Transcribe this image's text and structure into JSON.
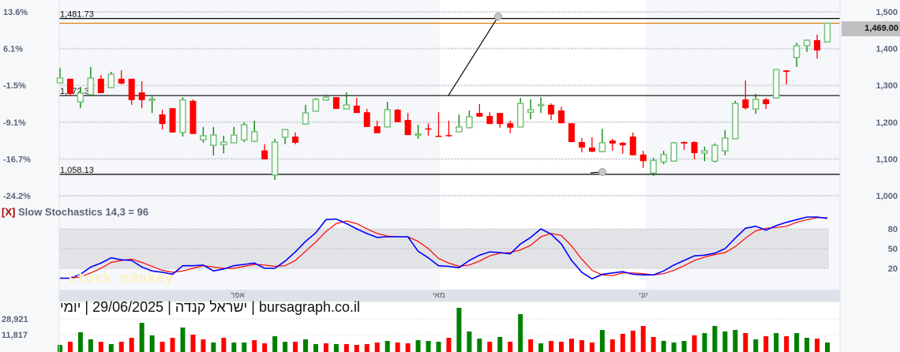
{
  "price_axis": {
    "labels": [
      "1,500",
      "1,400",
      "1,300",
      "1,200",
      "1,100",
      "1,000"
    ],
    "values": [
      1500,
      1400,
      1300,
      1200,
      1100,
      1000
    ]
  },
  "pct_axis": {
    "labels": [
      "13.6%",
      "6.1%",
      "-1.5%",
      "-9.1%",
      "-16.7%",
      "-24.2%"
    ]
  },
  "levels": [
    {
      "value": 1481.73,
      "label": "1,481.73"
    },
    {
      "value": 1272.38,
      "label": "1,272.38"
    },
    {
      "value": 1058.13,
      "label": "1,058.13"
    }
  ],
  "last_price": {
    "value": 1469,
    "label": "1,469.00"
  },
  "colors": {
    "up_body": "#7cc47f",
    "up_wick": "#008000",
    "down": "#ff0000",
    "last_line": "#e07b00",
    "stoch_k": "#0000ff",
    "stoch_d": "#ff0000",
    "vol_up": "#008000",
    "vol_down": "#ff0000"
  },
  "candles": [
    [
      1307,
      1348,
      1305,
      1320
    ],
    [
      1318,
      1318,
      1272,
      1277
    ],
    [
      1255,
      1296,
      1238,
      1279
    ],
    [
      1275,
      1350,
      1273,
      1320
    ],
    [
      1318,
      1328,
      1279,
      1279
    ],
    [
      1294,
      1337,
      1294,
      1330
    ],
    [
      1318,
      1341,
      1303,
      1305
    ],
    [
      1318,
      1318,
      1247,
      1260
    ],
    [
      1281,
      1311,
      1238,
      1260
    ],
    [
      1261,
      1270,
      1225,
      1263
    ],
    [
      1221,
      1234,
      1180,
      1195
    ],
    [
      1238,
      1238,
      1172,
      1172
    ],
    [
      1172,
      1268,
      1161,
      1260
    ],
    [
      1258,
      1262,
      1168,
      1168
    ],
    [
      1152,
      1187,
      1144,
      1163
    ],
    [
      1137,
      1187,
      1110,
      1165
    ],
    [
      1139,
      1163,
      1115,
      1146
    ],
    [
      1144,
      1187,
      1144,
      1165
    ],
    [
      1152,
      1200,
      1146,
      1193
    ],
    [
      1148,
      1204,
      1146,
      1174
    ],
    [
      1123,
      1140,
      1099,
      1099
    ],
    [
      1056,
      1155,
      1043,
      1146
    ],
    [
      1159,
      1180,
      1140,
      1180
    ],
    [
      1161,
      1172,
      1140,
      1144
    ],
    [
      1195,
      1247,
      1193,
      1225
    ],
    [
      1230,
      1266,
      1230,
      1262
    ],
    [
      1260,
      1275,
      1260,
      1268
    ],
    [
      1268,
      1268,
      1236,
      1236
    ],
    [
      1236,
      1281,
      1236,
      1247
    ],
    [
      1245,
      1266,
      1225,
      1225
    ],
    [
      1227,
      1236,
      1187,
      1187
    ],
    [
      1189,
      1204,
      1170,
      1170
    ],
    [
      1187,
      1255,
      1187,
      1234
    ],
    [
      1234,
      1236,
      1200,
      1200
    ],
    [
      1206,
      1225,
      1165,
      1165
    ],
    [
      1166,
      1193,
      1155,
      1168
    ],
    [
      1183,
      1197,
      1163,
      1181
    ],
    [
      1163,
      1227,
      1160,
      1162
    ],
    [
      1165,
      1204,
      1160,
      1163
    ],
    [
      1174,
      1221,
      1174,
      1187
    ],
    [
      1185,
      1232,
      1183,
      1215
    ],
    [
      1225,
      1249,
      1215,
      1215
    ],
    [
      1217,
      1227,
      1195,
      1195
    ],
    [
      1225,
      1225,
      1185,
      1195
    ],
    [
      1197,
      1204,
      1170,
      1185
    ],
    [
      1187,
      1266,
      1187,
      1251
    ],
    [
      1227,
      1262,
      1208,
      1234
    ],
    [
      1246,
      1268,
      1225,
      1248
    ],
    [
      1247,
      1251,
      1206,
      1221
    ],
    [
      1232,
      1242,
      1197,
      1197
    ],
    [
      1197,
      1197,
      1146,
      1146
    ],
    [
      1146,
      1157,
      1118,
      1131
    ],
    [
      1131,
      1159,
      1118,
      1120
    ],
    [
      1120,
      1182,
      1120,
      1144
    ],
    [
      1150,
      1155,
      1122,
      1142
    ],
    [
      1144,
      1146,
      1114,
      1137
    ],
    [
      1161,
      1172,
      1110,
      1110
    ],
    [
      1112,
      1122,
      1075,
      1094
    ],
    [
      1062,
      1103,
      1054,
      1096
    ],
    [
      1092,
      1122,
      1086,
      1112
    ],
    [
      1094,
      1146,
      1094,
      1144
    ],
    [
      1146,
      1148,
      1125,
      1142
    ],
    [
      1146,
      1148,
      1099,
      1116
    ],
    [
      1116,
      1133,
      1094,
      1122
    ],
    [
      1094,
      1142,
      1090,
      1137
    ],
    [
      1122,
      1178,
      1110,
      1157
    ],
    [
      1155,
      1258,
      1155,
      1251
    ],
    [
      1262,
      1313,
      1234,
      1238
    ],
    [
      1236,
      1277,
      1223,
      1262
    ],
    [
      1262,
      1266,
      1236,
      1249
    ],
    [
      1266,
      1343,
      1266,
      1343
    ],
    [
      1341,
      1341,
      1303,
      1337
    ],
    [
      1376,
      1416,
      1350,
      1408
    ],
    [
      1408,
      1423,
      1391,
      1423
    ],
    [
      1423,
      1438,
      1373,
      1395
    ],
    [
      1418,
      1469,
      1418,
      1469
    ]
  ],
  "stochastics": {
    "title_prefix": "[X]",
    "title": "Slow Stochastics 14,3 = 96",
    "axis_labels": [
      "80",
      "50",
      "20"
    ],
    "k": [
      5,
      5,
      11,
      22,
      28,
      36,
      33,
      32,
      22,
      16,
      14,
      11,
      24,
      24,
      25,
      16,
      19,
      24,
      26,
      28,
      20,
      20,
      31,
      45,
      61,
      74,
      94,
      95,
      88,
      80,
      73,
      67,
      68,
      68,
      68,
      46,
      36,
      24,
      23,
      21,
      32,
      40,
      45,
      44,
      42,
      57,
      67,
      80,
      72,
      57,
      32,
      14,
      4,
      11,
      13,
      15,
      11,
      10,
      10,
      16,
      25,
      32,
      39,
      40,
      43,
      50,
      66,
      81,
      84,
      78,
      85,
      90,
      94,
      98,
      98,
      96
    ],
    "d": [
      5,
      5,
      7,
      13,
      20,
      29,
      32,
      34,
      29,
      23,
      17,
      14,
      16,
      20,
      24,
      22,
      20,
      20,
      23,
      26,
      25,
      23,
      24,
      32,
      46,
      60,
      76,
      88,
      92,
      88,
      80,
      73,
      69,
      68,
      68,
      61,
      50,
      35,
      28,
      23,
      25,
      31,
      39,
      43,
      44,
      48,
      55,
      68,
      73,
      70,
      54,
      34,
      17,
      10,
      9,
      13,
      13,
      12,
      10,
      12,
      17,
      24,
      32,
      37,
      41,
      44,
      53,
      66,
      77,
      81,
      82,
      84,
      90,
      94,
      97,
      97
    ]
  },
  "months": [
    "אפר",
    "מאי",
    "יוני"
  ],
  "caption": {
    "period": "יומי",
    "sep": "|",
    "date": "29/06/2025",
    "name": "ישראל קנדה",
    "site": "bursagraph.co.il"
  },
  "watermark": "stock m0nkey",
  "volume": {
    "axis_labels": [
      "28,921",
      "11,817"
    ],
    "values": [
      700,
      4100,
      14400,
      6700,
      4100,
      1600,
      4100,
      8400,
      24600,
      11000,
      4100,
      8400,
      19500,
      11800,
      6700,
      3300,
      8400,
      3300,
      3300,
      5800,
      2400,
      10100,
      4100,
      4100,
      6700,
      1600,
      2400,
      1600,
      1600,
      700,
      1600,
      3300,
      5000,
      3300,
      2400,
      5800,
      5000,
      4100,
      8400,
      40900,
      15200,
      7500,
      4100,
      9300,
      4100,
      34000,
      6700,
      2400,
      5000,
      4100,
      7500,
      5800,
      3300,
      16900,
      6700,
      12700,
      16100,
      21200,
      9300,
      5000,
      3300,
      5000,
      11000,
      13500,
      21200,
      15200,
      16900,
      13500,
      6700,
      10100,
      13500,
      10100,
      13500,
      8400,
      7500,
      3300
    ],
    "up": [
      1,
      0,
      1,
      1,
      0,
      1,
      0,
      0,
      1,
      1,
      0,
      0,
      1,
      0,
      0,
      1,
      0,
      1,
      1,
      0,
      0,
      1,
      1,
      0,
      1,
      1,
      0,
      1,
      0,
      0,
      0,
      0,
      1,
      0,
      0,
      1,
      1,
      1,
      0,
      1,
      1,
      1,
      0,
      1,
      0,
      1,
      0,
      1,
      0,
      0,
      0,
      0,
      0,
      1,
      0,
      0,
      0,
      0,
      0,
      1,
      1,
      1,
      0,
      1,
      1,
      1,
      1,
      0,
      1,
      0,
      1,
      0,
      1,
      1,
      0,
      1
    ]
  }
}
